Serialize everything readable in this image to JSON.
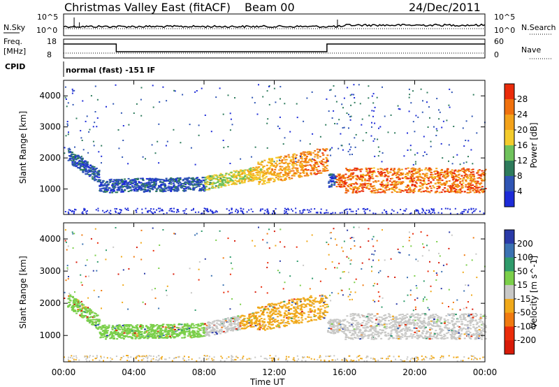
{
  "header": {
    "title": "Christmas Valley East (fitACF)",
    "beam": "Beam 00",
    "date": "24/Dec/2011"
  },
  "strip_panels": {
    "noise": {
      "left_label_top": "N.Sky",
      "left_ticks": [
        "10^5",
        "10^0"
      ],
      "right_ticks": [
        "10^5",
        "10^0"
      ],
      "right_label": "N.Search"
    },
    "freq": {
      "left_label_top": "Freq.",
      "left_label_unit": "[MHz]",
      "left_ticks": [
        "18",
        "8"
      ],
      "right_ticks": [
        "60",
        "0"
      ],
      "right_label": "Nave"
    },
    "cpid": {
      "label": "CPID",
      "text": "normal (fast) -151 IF"
    }
  },
  "time_axis": {
    "ticks": [
      "00:00",
      "04:00",
      "08:00",
      "12:00",
      "16:00",
      "20:00",
      "00:00"
    ],
    "label": "Time UT"
  },
  "chart_data": [
    {
      "type": "heatmap",
      "title": "Power",
      "xlabel": "Time UT",
      "ylabel": "Slant Range [km]",
      "x_hours": [
        0,
        24
      ],
      "ylim": [
        180,
        4500
      ],
      "y_ticks": [
        1000,
        2000,
        3000,
        4000
      ],
      "colorbar": {
        "label": "Power [dB]",
        "ticks": [
          4,
          8,
          12,
          16,
          20,
          24,
          28
        ],
        "colors": [
          "#1d2bd8",
          "#2f55b4",
          "#2e7b5c",
          "#6fc25c",
          "#f3cb2c",
          "#f3a21a",
          "#f0710e",
          "#ea2b0a"
        ]
      },
      "features": [
        {
          "name": "main band",
          "x_start": 1,
          "x_end": 24,
          "y_approx": [
            1000,
            1800
          ]
        },
        {
          "name": "high power region",
          "x_start": 16,
          "x_end": 24,
          "y_approx": [
            900,
            1400
          ]
        }
      ]
    },
    {
      "type": "heatmap",
      "title": "Velocity",
      "xlabel": "Time UT",
      "ylabel": "Slant Range [km]",
      "x_hours": [
        0,
        24
      ],
      "ylim": [
        180,
        4500
      ],
      "y_ticks": [
        1000,
        2000,
        3000,
        4000
      ],
      "colorbar": {
        "label": "Velocity [m s^-1]",
        "ticks": [
          200,
          100,
          50,
          15,
          -15,
          -50,
          -100,
          -200
        ],
        "colors": [
          "#2a3aa8",
          "#3b72b2",
          "#2f9b6b",
          "#7bcf4a",
          "#c8c8c6",
          "#f0a91a",
          "#f07a10",
          "#ea2c0a",
          "#d81a08"
        ]
      },
      "features": [
        {
          "name": "green echoes",
          "x_start": 1.5,
          "x_end": 8,
          "y_approx": [
            800,
            1500
          ]
        },
        {
          "name": "gray band",
          "x_start": 8,
          "x_end": 24,
          "y_approx": [
            1000,
            1800
          ]
        },
        {
          "name": "orange band",
          "x_start": 10,
          "x_end": 15,
          "y_approx": [
            900,
            1600
          ]
        }
      ]
    }
  ]
}
